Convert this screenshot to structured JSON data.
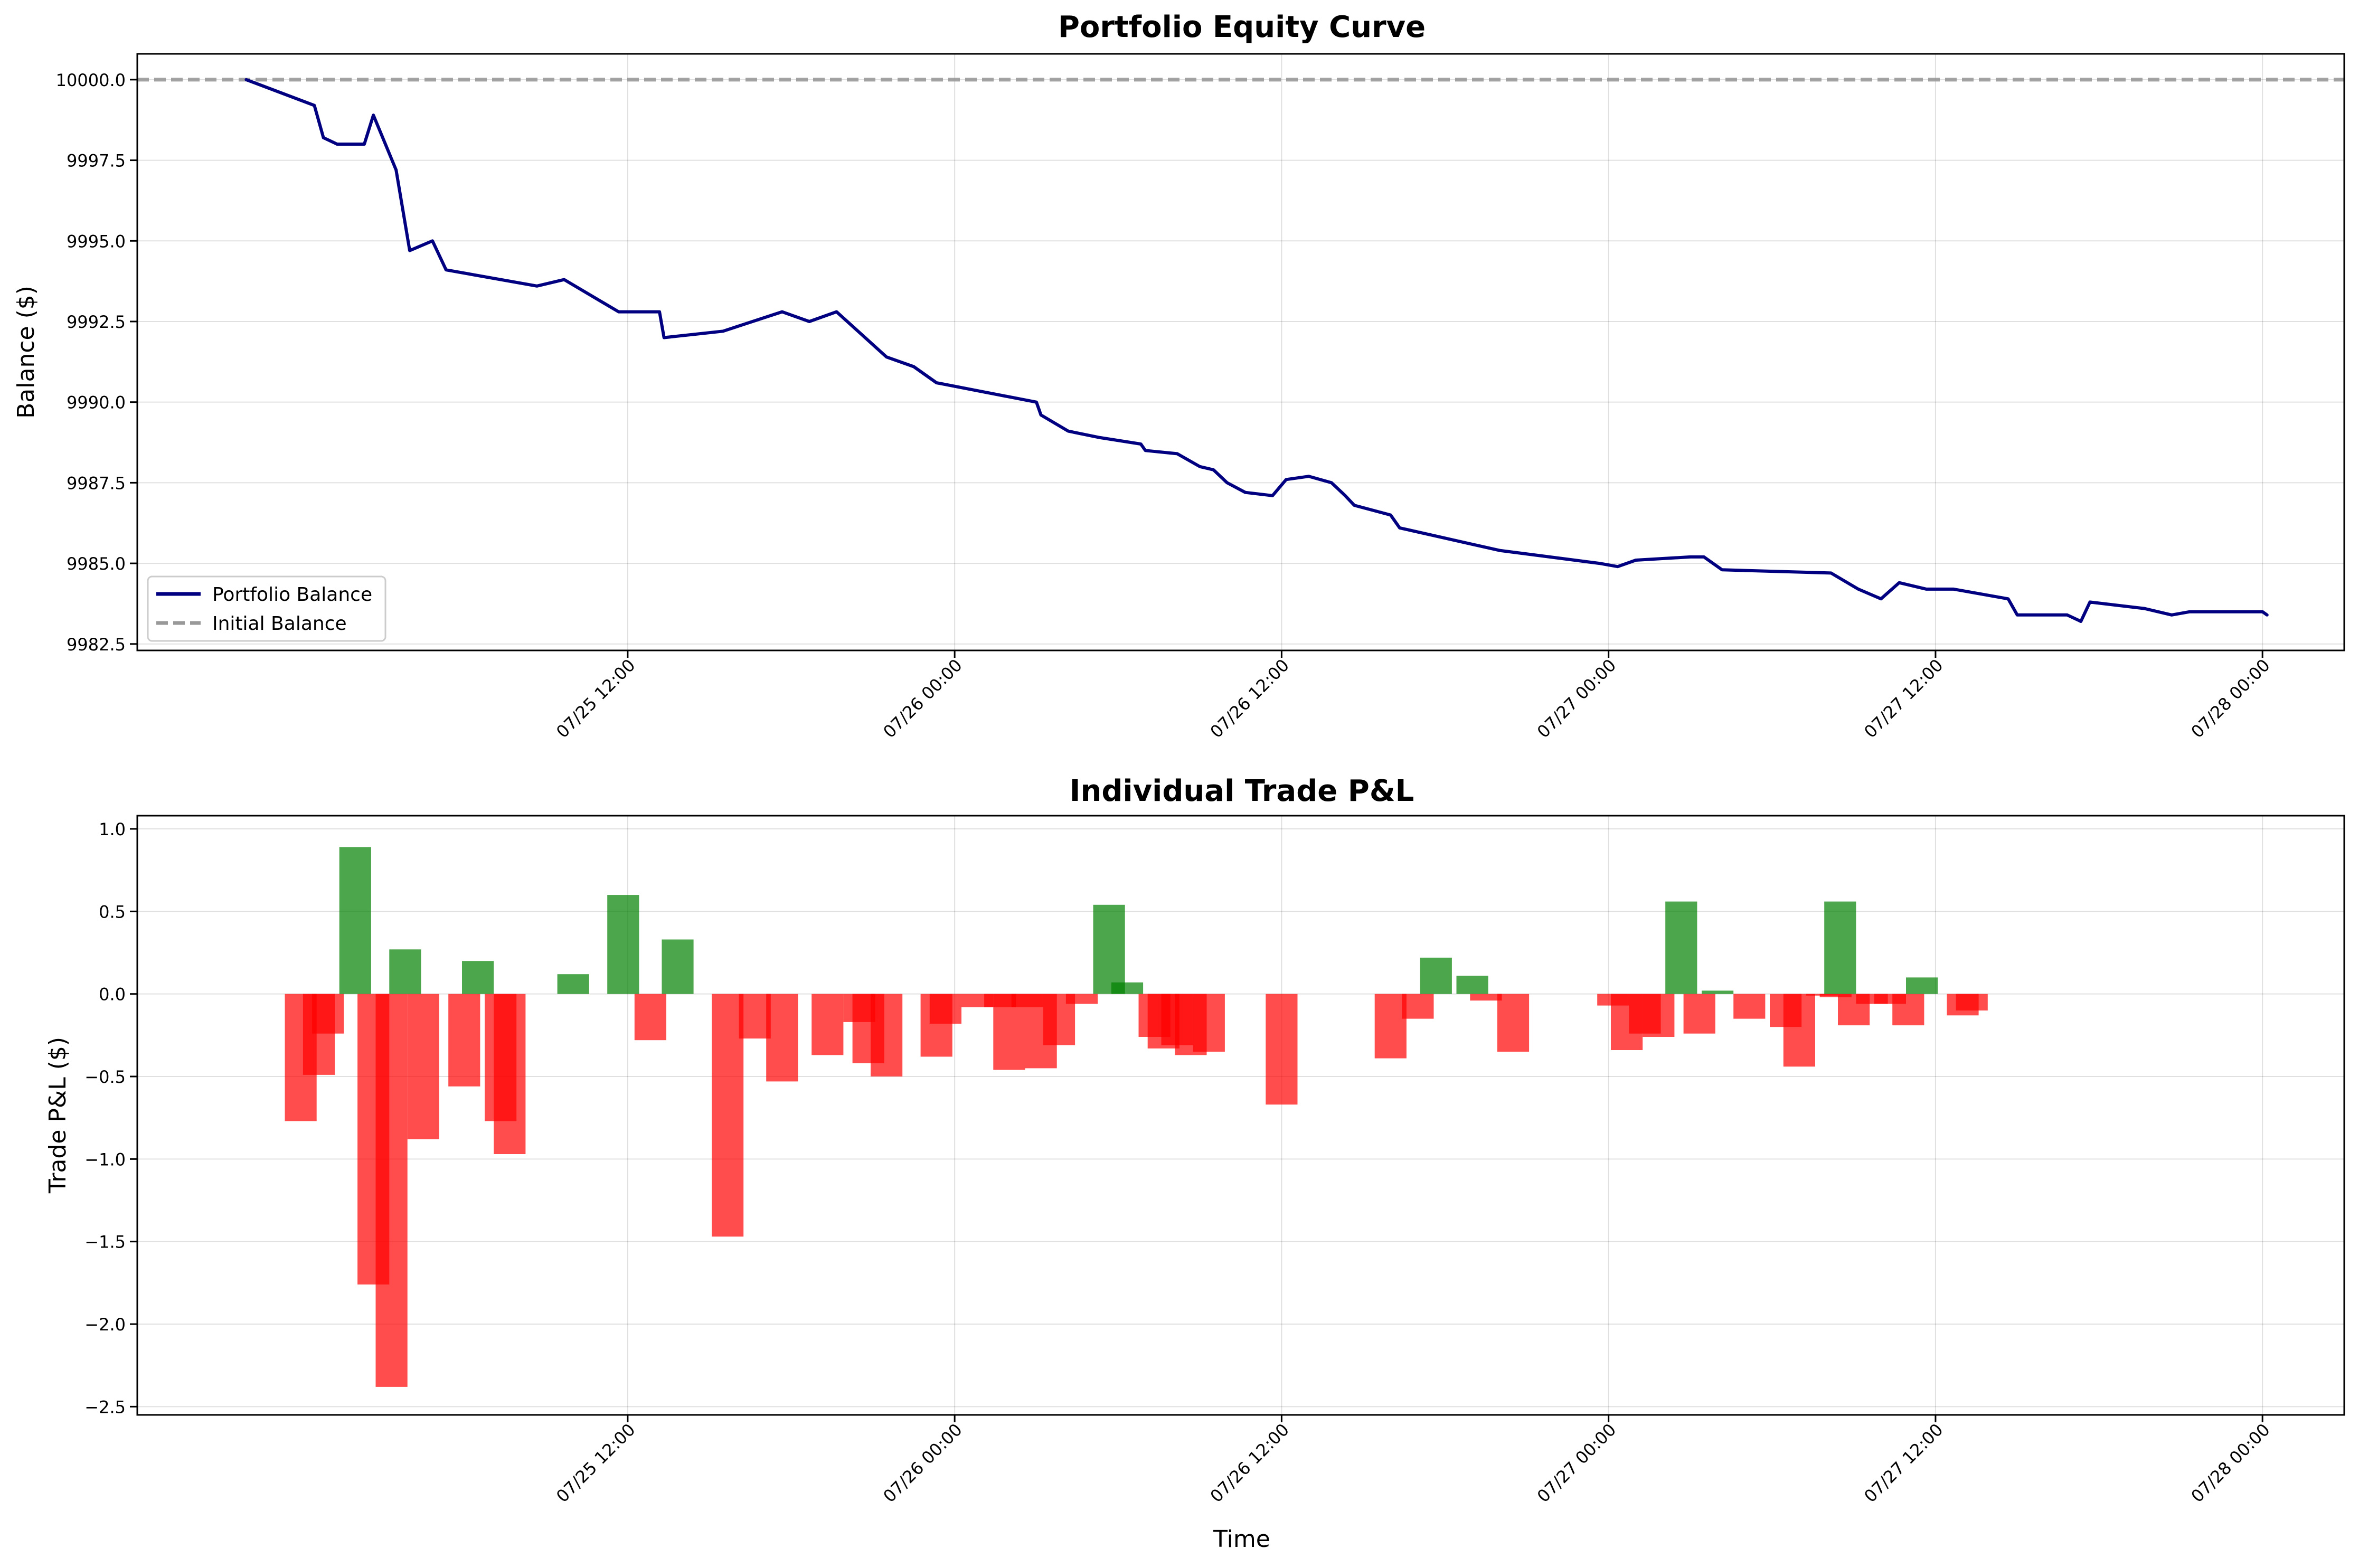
{
  "chart_data": [
    {
      "type": "line",
      "title": "Portfolio Equity Curve",
      "xlabel": "",
      "ylabel": "Balance ($)",
      "x_range": [
        "2025-07-24 18:00",
        "2025-07-28 03:00"
      ],
      "ylim": [
        9982.3,
        10000.8
      ],
      "y_ticks": [
        "9982.5",
        "9985.0",
        "9987.5",
        "9990.0",
        "9992.5",
        "9995.0",
        "9997.5",
        "10000.0"
      ],
      "x_ticks": [
        {
          "t": "2025-07-25 12:00",
          "label": "07/25 12:00"
        },
        {
          "t": "2025-07-26 00:00",
          "label": "07/26 00:00"
        },
        {
          "t": "2025-07-26 12:00",
          "label": "07/26 12:00"
        },
        {
          "t": "2025-07-27 00:00",
          "label": "07/27 00:00"
        },
        {
          "t": "2025-07-27 12:00",
          "label": "07/27 12:00"
        },
        {
          "t": "2025-07-28 00:00",
          "label": "07/28 00:00"
        }
      ],
      "grid": true,
      "legend": "lower-left",
      "series": [
        {
          "name": "Portfolio Balance",
          "color": "#000080",
          "style": "solid",
          "points": [
            [
              "2025-07-24 22:00",
              10000.0
            ],
            [
              "2025-07-25 00:30",
              9999.2
            ],
            [
              "2025-07-25 00:50",
              9998.2
            ],
            [
              "2025-07-25 01:20",
              9998.0
            ],
            [
              "2025-07-25 02:20",
              9998.0
            ],
            [
              "2025-07-25 02:40",
              9998.9
            ],
            [
              "2025-07-25 03:30",
              9997.2
            ],
            [
              "2025-07-25 04:00",
              9994.7
            ],
            [
              "2025-07-25 04:50",
              9995.0
            ],
            [
              "2025-07-25 05:20",
              9994.1
            ],
            [
              "2025-07-25 08:40",
              9993.6
            ],
            [
              "2025-07-25 09:40",
              9993.8
            ],
            [
              "2025-07-25 11:40",
              9992.8
            ],
            [
              "2025-07-25 13:10",
              9992.8
            ],
            [
              "2025-07-25 13:20",
              9992.0
            ],
            [
              "2025-07-25 15:30",
              9992.2
            ],
            [
              "2025-07-25 17:40",
              9992.8
            ],
            [
              "2025-07-25 18:40",
              9992.5
            ],
            [
              "2025-07-25 19:40",
              9992.8
            ],
            [
              "2025-07-25 21:30",
              9991.4
            ],
            [
              "2025-07-25 22:30",
              9991.1
            ],
            [
              "2025-07-25 23:20",
              9990.6
            ],
            [
              "2025-07-26 03:00",
              9990.0
            ],
            [
              "2025-07-26 03:10",
              9989.6
            ],
            [
              "2025-07-26 04:10",
              9989.1
            ],
            [
              "2025-07-26 05:20",
              9988.9
            ],
            [
              "2025-07-26 06:50",
              9988.7
            ],
            [
              "2025-07-26 07:00",
              9988.5
            ],
            [
              "2025-07-26 08:10",
              9988.4
            ],
            [
              "2025-07-26 09:00",
              9988.0
            ],
            [
              "2025-07-26 09:30",
              9987.9
            ],
            [
              "2025-07-26 10:00",
              9987.5
            ],
            [
              "2025-07-26 10:40",
              9987.2
            ],
            [
              "2025-07-26 11:40",
              9987.1
            ],
            [
              "2025-07-26 12:10",
              9987.6
            ],
            [
              "2025-07-26 13:00",
              9987.7
            ],
            [
              "2025-07-26 13:50",
              9987.5
            ],
            [
              "2025-07-26 14:20",
              9987.1
            ],
            [
              "2025-07-26 14:40",
              9986.8
            ],
            [
              "2025-07-26 16:00",
              9986.5
            ],
            [
              "2025-07-26 16:20",
              9986.1
            ],
            [
              "2025-07-26 20:00",
              9985.4
            ],
            [
              "2025-07-26 23:40",
              9985.0
            ],
            [
              "2025-07-27 00:20",
              9984.9
            ],
            [
              "2025-07-27 01:00",
              9985.1
            ],
            [
              "2025-07-27 03:00",
              9985.2
            ],
            [
              "2025-07-27 03:30",
              9985.2
            ],
            [
              "2025-07-27 04:10",
              9984.8
            ],
            [
              "2025-07-27 08:10",
              9984.7
            ],
            [
              "2025-07-27 09:10",
              9984.2
            ],
            [
              "2025-07-27 10:00",
              9983.9
            ],
            [
              "2025-07-27 10:40",
              9984.4
            ],
            [
              "2025-07-27 11:40",
              9984.2
            ],
            [
              "2025-07-27 12:40",
              9984.2
            ],
            [
              "2025-07-27 14:40",
              9983.9
            ],
            [
              "2025-07-27 15:00",
              9983.4
            ],
            [
              "2025-07-27 16:50",
              9983.4
            ],
            [
              "2025-07-27 17:20",
              9983.2
            ],
            [
              "2025-07-27 17:40",
              9983.8
            ],
            [
              "2025-07-27 19:40",
              9983.6
            ],
            [
              "2025-07-27 20:40",
              9983.4
            ],
            [
              "2025-07-27 21:20",
              9983.5
            ],
            [
              "2025-07-28 00:00",
              9983.5
            ],
            [
              "2025-07-28 00:10",
              9983.4
            ]
          ]
        },
        {
          "name": "Initial Balance",
          "color": "#999999",
          "style": "dashed",
          "points": [
            [
              "2025-07-24 18:00",
              10000.0
            ],
            [
              "2025-07-28 03:00",
              10000.0
            ]
          ]
        }
      ]
    },
    {
      "type": "bar",
      "title": "Individual Trade P&L",
      "xlabel": "Time",
      "ylabel": "Trade P&L ($)",
      "x_range": [
        "2025-07-24 18:00",
        "2025-07-28 03:00"
      ],
      "ylim": [
        -2.55,
        1.08
      ],
      "y_ticks": [
        "−2.5",
        "−2.0",
        "−1.5",
        "−1.0",
        "−0.5",
        "0.0",
        "0.5",
        "1.0"
      ],
      "x_ticks": [
        {
          "t": "2025-07-25 12:00",
          "label": "07/25 12:00"
        },
        {
          "t": "2025-07-26 00:00",
          "label": "07/26 00:00"
        },
        {
          "t": "2025-07-26 12:00",
          "label": "07/26 12:00"
        },
        {
          "t": "2025-07-27 00:00",
          "label": "07/27 00:00"
        },
        {
          "t": "2025-07-27 12:00",
          "label": "07/27 12:00"
        },
        {
          "t": "2025-07-28 00:00",
          "label": "07/28 00:00"
        }
      ],
      "bar_width_minutes": 70,
      "grid": true,
      "colors": {
        "profit": "#008000",
        "loss": "#ff0000"
      },
      "bars": [
        [
          "2025-07-25 00:00",
          -0.77
        ],
        [
          "2025-07-25 00:40",
          -0.49
        ],
        [
          "2025-07-25 01:00",
          -0.24
        ],
        [
          "2025-07-25 02:00",
          0.89
        ],
        [
          "2025-07-25 02:40",
          -1.76
        ],
        [
          "2025-07-25 03:20",
          -2.38
        ],
        [
          "2025-07-25 03:50",
          0.27
        ],
        [
          "2025-07-25 04:30",
          -0.88
        ],
        [
          "2025-07-25 06:00",
          -0.56
        ],
        [
          "2025-07-25 06:30",
          0.2
        ],
        [
          "2025-07-25 07:20",
          -0.77
        ],
        [
          "2025-07-25 07:40",
          -0.97
        ],
        [
          "2025-07-25 10:00",
          0.12
        ],
        [
          "2025-07-25 11:50",
          0.6
        ],
        [
          "2025-07-25 12:50",
          -0.28
        ],
        [
          "2025-07-25 13:50",
          0.33
        ],
        [
          "2025-07-25 15:40",
          -1.47
        ],
        [
          "2025-07-25 16:40",
          -0.27
        ],
        [
          "2025-07-25 17:40",
          -0.53
        ],
        [
          "2025-07-25 19:20",
          -0.37
        ],
        [
          "2025-07-25 20:30",
          -0.17
        ],
        [
          "2025-07-25 20:50",
          -0.42
        ],
        [
          "2025-07-25 21:30",
          -0.5
        ],
        [
          "2025-07-25 23:20",
          -0.38
        ],
        [
          "2025-07-25 23:40",
          -0.18
        ],
        [
          "2025-07-26 00:50",
          -0.08
        ],
        [
          "2025-07-26 01:40",
          -0.08
        ],
        [
          "2025-07-26 02:00",
          -0.46
        ],
        [
          "2025-07-26 02:40",
          -0.08
        ],
        [
          "2025-07-26 03:10",
          -0.45
        ],
        [
          "2025-07-26 03:50",
          -0.31
        ],
        [
          "2025-07-26 04:40",
          -0.06
        ],
        [
          "2025-07-26 05:40",
          0.54
        ],
        [
          "2025-07-26 06:20",
          0.07
        ],
        [
          "2025-07-26 07:20",
          -0.26
        ],
        [
          "2025-07-26 07:40",
          -0.33
        ],
        [
          "2025-07-26 08:10",
          -0.31
        ],
        [
          "2025-07-26 08:40",
          -0.37
        ],
        [
          "2025-07-26 09:20",
          -0.35
        ],
        [
          "2025-07-26 12:00",
          -0.67
        ],
        [
          "2025-07-26 16:00",
          -0.39
        ],
        [
          "2025-07-26 17:00",
          -0.15
        ],
        [
          "2025-07-26 17:40",
          0.22
        ],
        [
          "2025-07-26 19:00",
          0.11
        ],
        [
          "2025-07-26 19:30",
          -0.04
        ],
        [
          "2025-07-26 20:30",
          -0.35
        ],
        [
          "2025-07-27 00:10",
          -0.07
        ],
        [
          "2025-07-27 00:40",
          -0.34
        ],
        [
          "2025-07-27 01:20",
          -0.24
        ],
        [
          "2025-07-27 01:50",
          -0.26
        ],
        [
          "2025-07-27 02:40",
          0.56
        ],
        [
          "2025-07-27 03:20",
          -0.24
        ],
        [
          "2025-07-27 04:00",
          0.02
        ],
        [
          "2025-07-27 05:10",
          -0.15
        ],
        [
          "2025-07-27 06:30",
          -0.2
        ],
        [
          "2025-07-27 07:00",
          -0.44
        ],
        [
          "2025-07-27 07:50",
          -0.01
        ],
        [
          "2025-07-27 08:20",
          -0.02
        ],
        [
          "2025-07-27 08:30",
          0.56
        ],
        [
          "2025-07-27 09:00",
          -0.19
        ],
        [
          "2025-07-27 09:40",
          -0.06
        ],
        [
          "2025-07-27 10:20",
          -0.06
        ],
        [
          "2025-07-27 11:00",
          -0.19
        ],
        [
          "2025-07-27 11:30",
          0.1
        ],
        [
          "2025-07-27 13:00",
          -0.13
        ],
        [
          "2025-07-27 13:20",
          -0.1
        ]
      ]
    }
  ],
  "legend": {
    "balance_label": "Portfolio Balance",
    "initial_label": "Initial Balance"
  }
}
